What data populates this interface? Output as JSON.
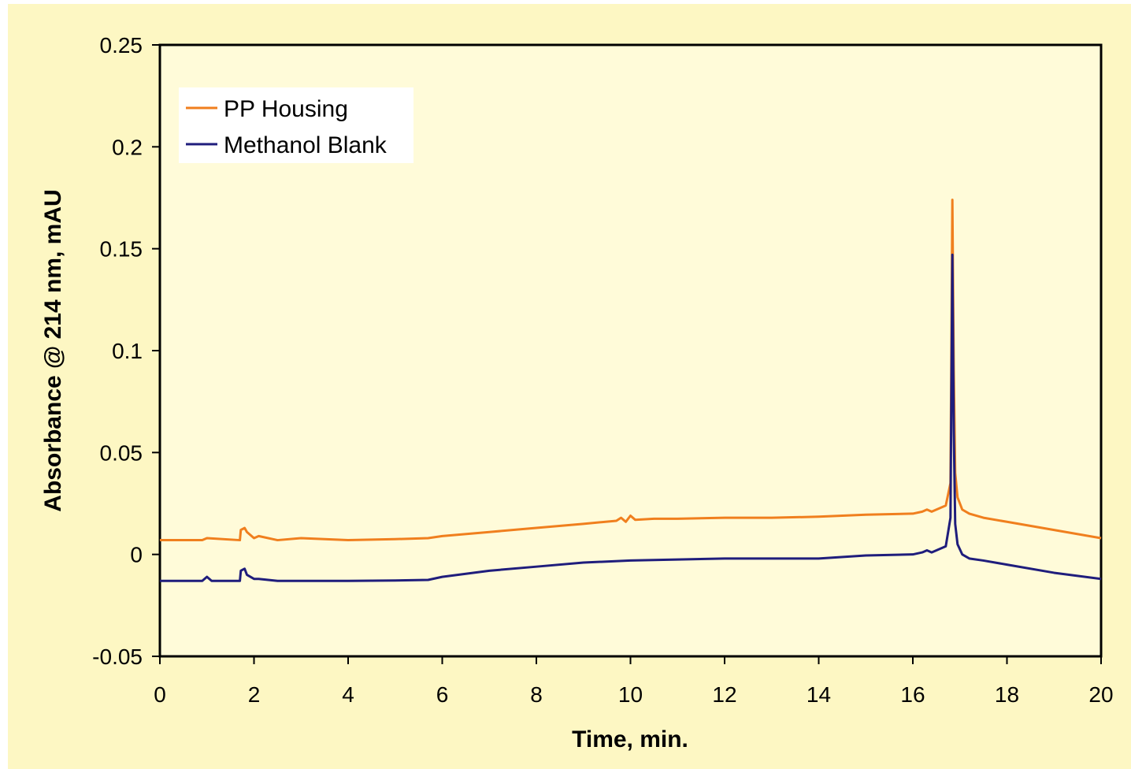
{
  "chart_data": {
    "type": "line",
    "xlabel": "Time, min.",
    "ylabel": "Absorbance @ 214 nm, mAU",
    "xlim": [
      0,
      20
    ],
    "ylim": [
      -0.05,
      0.25
    ],
    "xticks": [
      0,
      2,
      4,
      6,
      8,
      10,
      12,
      14,
      16,
      18,
      20
    ],
    "yticks": [
      -0.05,
      0,
      0.05,
      0.1,
      0.15,
      0.2,
      0.25
    ],
    "ytick_labels": [
      "-0.05",
      "0",
      "0.05",
      "0.1",
      "0.15",
      "0.2",
      "0.25"
    ],
    "grid": false,
    "legend": "top-left",
    "series": [
      {
        "name": "PP Housing",
        "color": "#f07f1e",
        "x": [
          0,
          0.9,
          1.0,
          1.7,
          1.72,
          1.8,
          1.85,
          2.0,
          2.1,
          2.5,
          3.0,
          4.0,
          5.0,
          5.7,
          6.0,
          7.0,
          8.0,
          9.0,
          9.7,
          9.8,
          9.9,
          10.0,
          10.1,
          10.5,
          11.0,
          12.0,
          13.0,
          14.0,
          15.0,
          16.0,
          16.2,
          16.3,
          16.4,
          16.7,
          16.8,
          16.84,
          16.87,
          16.9,
          16.95,
          17.05,
          17.2,
          17.5,
          18.0,
          19.0,
          20.0
        ],
        "y": [
          0.007,
          0.007,
          0.008,
          0.007,
          0.012,
          0.013,
          0.011,
          0.008,
          0.009,
          0.007,
          0.008,
          0.007,
          0.0075,
          0.008,
          0.009,
          0.011,
          0.013,
          0.015,
          0.0165,
          0.018,
          0.016,
          0.019,
          0.017,
          0.0175,
          0.0175,
          0.018,
          0.018,
          0.0185,
          0.0195,
          0.02,
          0.021,
          0.022,
          0.021,
          0.024,
          0.035,
          0.174,
          0.09,
          0.04,
          0.028,
          0.022,
          0.02,
          0.018,
          0.016,
          0.012,
          0.008
        ]
      },
      {
        "name": "Methanol Blank",
        "color": "#1f1d7c",
        "x": [
          0,
          0.9,
          1.0,
          1.1,
          1.7,
          1.72,
          1.8,
          1.85,
          2.0,
          2.1,
          2.5,
          3.0,
          4.0,
          5.0,
          5.7,
          6.0,
          7.0,
          8.0,
          9.0,
          10.0,
          11.0,
          12.0,
          13.0,
          14.0,
          15.0,
          16.0,
          16.2,
          16.3,
          16.4,
          16.7,
          16.8,
          16.84,
          16.87,
          16.9,
          16.95,
          17.05,
          17.2,
          17.5,
          18.0,
          19.0,
          20.0
        ],
        "y": [
          -0.013,
          -0.013,
          -0.011,
          -0.013,
          -0.013,
          -0.008,
          -0.007,
          -0.01,
          -0.012,
          -0.012,
          -0.013,
          -0.013,
          -0.013,
          -0.0128,
          -0.0125,
          -0.011,
          -0.008,
          -0.006,
          -0.004,
          -0.003,
          -0.0025,
          -0.002,
          -0.002,
          -0.002,
          -0.0005,
          0.0,
          0.001,
          0.002,
          0.001,
          0.004,
          0.018,
          0.147,
          0.06,
          0.015,
          0.005,
          0.0,
          -0.002,
          -0.003,
          -0.005,
          -0.009,
          -0.012
        ]
      }
    ]
  }
}
